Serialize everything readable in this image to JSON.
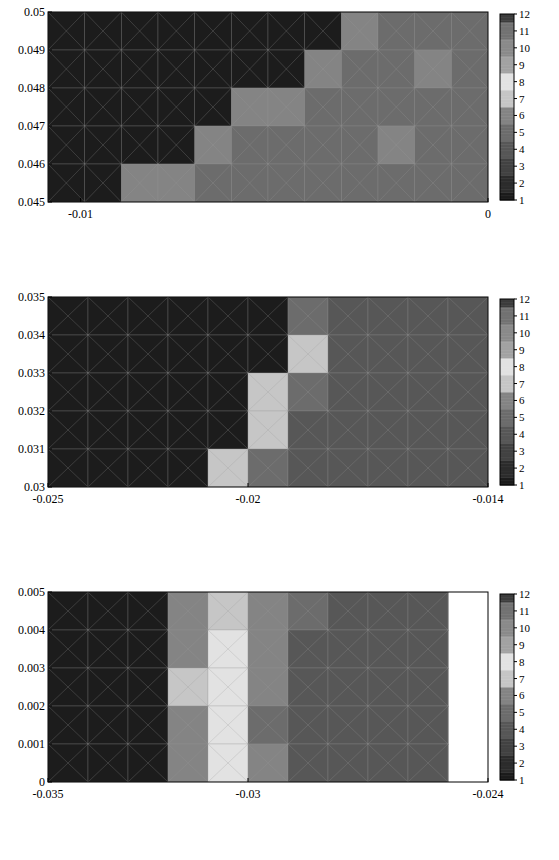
{
  "chart_data": [
    {
      "type": "heatmap",
      "xlim": [
        -0.0108,
        0
      ],
      "xticks": [
        -0.01,
        0
      ],
      "ylim": [
        0.045,
        0.05
      ],
      "yticks": [
        0.045,
        0.046,
        0.047,
        0.048,
        0.049,
        0.05
      ],
      "cells": [
        [
          1,
          1,
          1,
          1,
          1,
          1,
          1,
          1,
          6,
          5,
          5,
          5
        ],
        [
          1,
          1,
          1,
          1,
          1,
          1,
          1,
          6,
          5,
          5,
          6,
          5
        ],
        [
          1,
          1,
          1,
          1,
          1,
          6,
          6,
          5,
          5,
          5,
          5,
          5
        ],
        [
          1,
          1,
          1,
          1,
          6,
          5,
          5,
          5,
          5,
          6,
          5,
          5
        ],
        [
          1,
          1,
          6,
          6,
          5,
          5,
          5,
          5,
          5,
          5,
          5,
          5
        ]
      ],
      "colorbar_range": [
        1,
        12
      ],
      "colorbar_ticks": [
        1,
        2,
        3,
        4,
        5,
        6,
        7,
        8,
        9,
        10,
        11,
        12
      ]
    },
    {
      "type": "heatmap",
      "xlim": [
        -0.025,
        -0.014
      ],
      "xticks": [
        -0.025,
        -0.02,
        -0.014
      ],
      "ylim": [
        0.03,
        0.035
      ],
      "yticks": [
        0.03,
        0.031,
        0.032,
        0.033,
        0.034,
        0.035
      ],
      "cells": [
        [
          1,
          1,
          1,
          1,
          1,
          1,
          5,
          4,
          4,
          4,
          4
        ],
        [
          1,
          1,
          1,
          1,
          1,
          1,
          7,
          4,
          4,
          4,
          4
        ],
        [
          1,
          1,
          1,
          1,
          1,
          7,
          5,
          4,
          4,
          4,
          4
        ],
        [
          1,
          1,
          1,
          1,
          1,
          7,
          4,
          4,
          4,
          4,
          4
        ],
        [
          1,
          1,
          1,
          1,
          7,
          5,
          4,
          4,
          4,
          4,
          4
        ]
      ],
      "colorbar_range": [
        1,
        12
      ],
      "colorbar_ticks": [
        1,
        2,
        3,
        4,
        5,
        6,
        7,
        8,
        9,
        10,
        11,
        12
      ]
    },
    {
      "type": "heatmap",
      "xlim": [
        -0.035,
        -0.024
      ],
      "xticks": [
        -0.035,
        -0.03,
        -0.024
      ],
      "ylim": [
        0,
        0.005
      ],
      "yticks": [
        0,
        0.001,
        0.002,
        0.003,
        0.004,
        0.005
      ],
      "cells": [
        [
          1,
          1,
          1,
          6,
          7,
          6,
          5,
          4,
          4,
          4,
          null
        ],
        [
          1,
          1,
          1,
          6,
          8,
          6,
          4,
          4,
          4,
          4,
          null
        ],
        [
          1,
          1,
          1,
          7,
          8,
          6,
          4,
          4,
          4,
          4,
          null
        ],
        [
          1,
          1,
          1,
          6,
          8,
          5,
          4,
          4,
          4,
          4,
          null
        ],
        [
          1,
          1,
          1,
          6,
          8,
          6,
          4,
          4,
          4,
          4,
          null
        ]
      ],
      "colorbar_range": [
        1,
        12
      ],
      "colorbar_ticks": [
        1,
        2,
        3,
        4,
        5,
        6,
        7,
        8,
        9,
        10,
        11,
        12
      ]
    }
  ]
}
